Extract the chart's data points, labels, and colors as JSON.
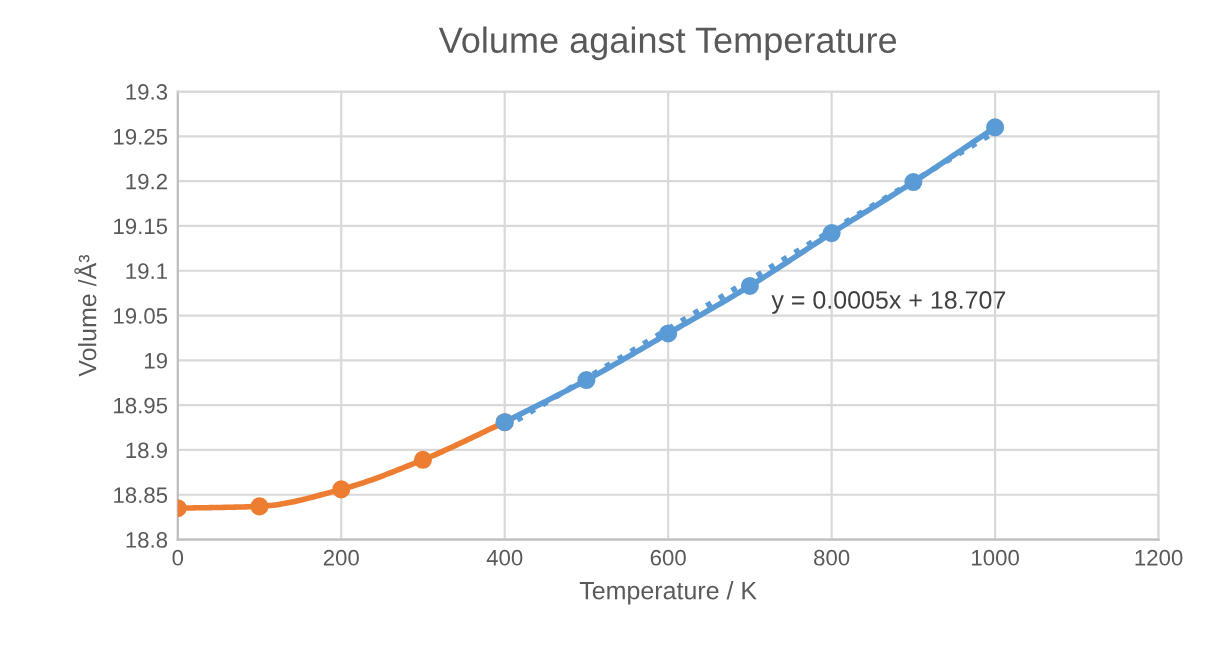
{
  "chart_data": {
    "type": "line",
    "title": "Volume against Temperature",
    "xlabel": "Temperature / K",
    "ylabel": "Volume /Å³",
    "series": [
      {
        "color": "#ed7d31",
        "x": [
          0,
          100,
          200,
          300,
          400
        ],
        "values": [
          18.835,
          18.837,
          18.856,
          18.889,
          18.931
        ],
        "marker": "circle"
      },
      {
        "color": "#5b9bd5",
        "x": [
          400,
          500,
          600,
          700,
          800,
          900,
          1000
        ],
        "values": [
          18.931,
          18.978,
          19.03,
          19.083,
          19.142,
          19.199,
          19.26
        ],
        "marker": "circle"
      },
      {
        "color": "#5b9bd5",
        "x": [
          400,
          1000
        ],
        "values": [
          18.925,
          19.255
        ],
        "line_style": "dotted",
        "marker": "none"
      }
    ],
    "annotations": [
      "y = 0.0005x + 18.707"
    ],
    "xlim": [
      0,
      1200
    ],
    "xticks": [
      0,
      200,
      400,
      600,
      800,
      1000,
      1200
    ],
    "ylim": [
      18.8,
      19.3
    ],
    "yticks": [
      18.8,
      18.85,
      18.9,
      18.95,
      19,
      19.05,
      19.1,
      19.15,
      19.2,
      19.25,
      19.3
    ],
    "grid": true,
    "legend": false
  }
}
